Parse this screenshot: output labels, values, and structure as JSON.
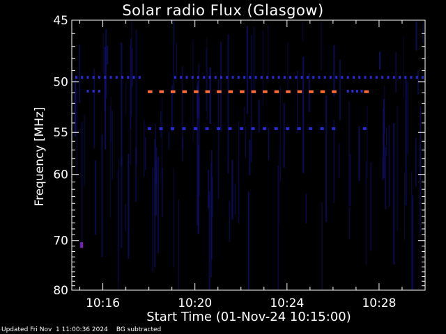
{
  "chart_data": {
    "type": "heatmap",
    "title": "Solar radio Flux (Glasgow)",
    "xlabel": "Start Time (01-Nov-24 10:15:00)",
    "ylabel": "Frequency [MHz]",
    "x_ticks": [
      "10:16",
      "10:20",
      "10:24",
      "10:28"
    ],
    "x_tick_minutes": [
      1,
      5,
      9,
      13
    ],
    "xlim_minutes": [
      -0.35,
      15.0
    ],
    "y_ticks": [
      45,
      50,
      55,
      60,
      70,
      80
    ],
    "ylim": [
      45,
      80
    ],
    "y_scale": "reciprocal",
    "background": "#000000",
    "axis_color": "#ffffff",
    "series": [
      {
        "values": [
          {
            "f": 50.9,
            "t0": 2.95,
            "t1": 3.15
          },
          {
            "f": 50.9,
            "t0": 3.45,
            "t1": 3.65
          },
          {
            "f": 50.9,
            "t0": 3.95,
            "t1": 4.15
          },
          {
            "f": 50.9,
            "t0": 4.45,
            "t1": 4.65
          },
          {
            "f": 50.9,
            "t0": 4.95,
            "t1": 5.15
          },
          {
            "f": 50.9,
            "t0": 5.45,
            "t1": 5.65
          },
          {
            "f": 50.9,
            "t0": 5.95,
            "t1": 6.15
          },
          {
            "f": 50.9,
            "t0": 6.45,
            "t1": 6.65
          },
          {
            "f": 50.9,
            "t0": 6.95,
            "t1": 7.15
          },
          {
            "f": 50.9,
            "t0": 7.45,
            "t1": 7.65
          },
          {
            "f": 50.9,
            "t0": 7.95,
            "t1": 8.15
          },
          {
            "f": 50.9,
            "t0": 8.45,
            "t1": 8.65
          },
          {
            "f": 50.9,
            "t0": 8.95,
            "t1": 9.15
          },
          {
            "f": 50.9,
            "t0": 9.45,
            "t1": 9.65
          },
          {
            "f": 50.9,
            "t0": 9.95,
            "t1": 10.15
          },
          {
            "f": 50.9,
            "t0": 10.45,
            "t1": 10.65
          },
          {
            "f": 50.9,
            "t0": 10.95,
            "t1": 11.15
          },
          {
            "f": 50.9,
            "t0": 12.35,
            "t1": 12.55
          }
        ]
      }
    ],
    "colors": {
      "burst": "#ff6a30",
      "interference": "#2a2ad8",
      "faint": "#10106e",
      "spot": "#7a1fc4"
    }
  },
  "footer": {
    "updated": "Updated Fri Nov  1 11:00:36 2024",
    "note": "BG subtracted"
  }
}
